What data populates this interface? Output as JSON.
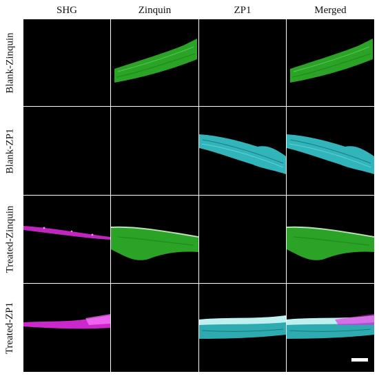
{
  "columns": {
    "shg": "SHG",
    "zinquin": "Zinquin",
    "zp1": "ZP1",
    "merged": "Merged"
  },
  "rows": {
    "blank_zinquin": "Blank-Zinquin",
    "blank_zp1": "Blank-ZP1",
    "treated_zinquin": "Treated-Zinquin",
    "treated_zp1": "Treated-ZP1"
  },
  "colors": {
    "panel_background": "#000000",
    "zinquin_green": "#2fb52a",
    "zp1_cyan": "#36c9cf",
    "shg_magenta": "#e02ce0",
    "scale_bar": "#ffffff"
  }
}
